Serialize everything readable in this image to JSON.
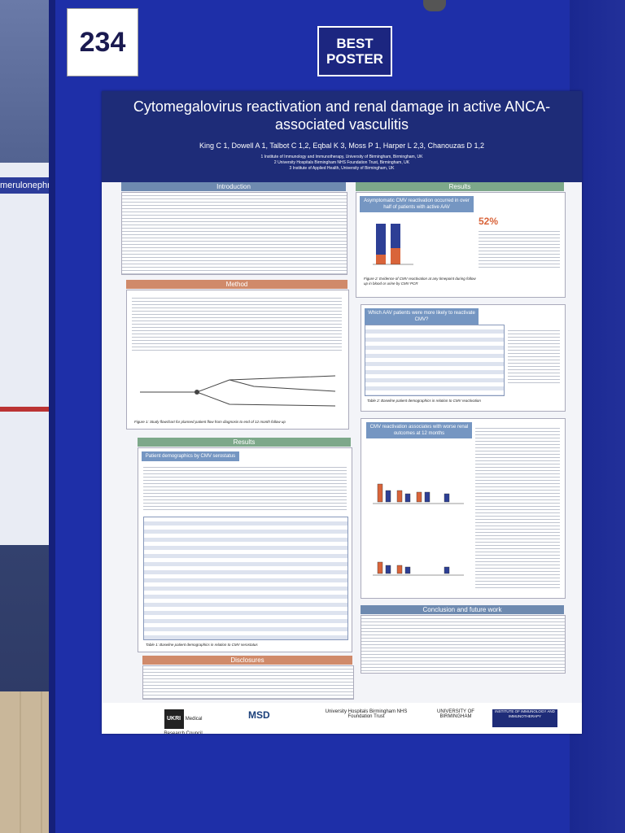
{
  "scene": {
    "poster_number": "234",
    "badge": "BEST POSTER",
    "left_board_strip": "merulonephr"
  },
  "poster": {
    "title": "Cytomegalovirus reactivation and renal damage in active ANCA-associated vasculitis",
    "authors": "King C 1, Dowell A 1, Talbot C 1,2, Eqbal K 3, Moss P 1, Harper L 2,3, Chanouzas D 1,2",
    "affiliations": [
      "1 Institute of Immunology and Immunotherapy, University of Birmingham, Birmingham, UK",
      "2 University Hospitals Birmingham NHS Foundation Trust, Birmingham, UK",
      "3 Institute of Applied Health, University of Birmingham, UK"
    ],
    "sections": {
      "introduction": "Introduction",
      "method": "Method",
      "results_left": "Results",
      "disclosures": "Disclosures",
      "results_right": "Results",
      "conclusion": "Conclusion and future work"
    },
    "subheads": {
      "patient_demographics": "Patient demographics by CMV serostatus",
      "asymptomatic": "Asymptomatic CMV reactivation occurred in over half of patients with active AAV",
      "which_patients": "Which AAV patients were more likely to reactivate CMV?",
      "worse_outcomes": "CMV reactivation associates with worse renal outcomes at 12 months"
    },
    "highlight_stat": "52%",
    "figure_captions": {
      "fig1": "Figure 1: Study flowchart for planned patient flow from diagnosis to end of 12 month follow up",
      "fig2": "Figure 2: Evidence of CMV reactivation at any timepoint during follow up in blood or urine by CMV PCR",
      "table1": "Table 1: Baseline patient demographics in relation to CMV serostatus",
      "table2": "Table 2: Baseline patient demographics in relation to CMV reactivation"
    },
    "logos": {
      "ukri": "UKRI",
      "mrc": "Medical Research Council",
      "msd": "MSD",
      "uhb": "University Hospitals Birmingham NHS Foundation Trust",
      "uob": "UNIVERSITY OF BIRMINGHAM",
      "ie": "INSTITUTE OF IMMUNOLOGY AND IMMUNOTHERAPY"
    }
  },
  "colors": {
    "board": "#1e2fa8",
    "title_bar": "#1e2c78",
    "section_blue": "#6e8ab0",
    "section_green": "#7da88a",
    "section_orange": "#d08a6a"
  }
}
